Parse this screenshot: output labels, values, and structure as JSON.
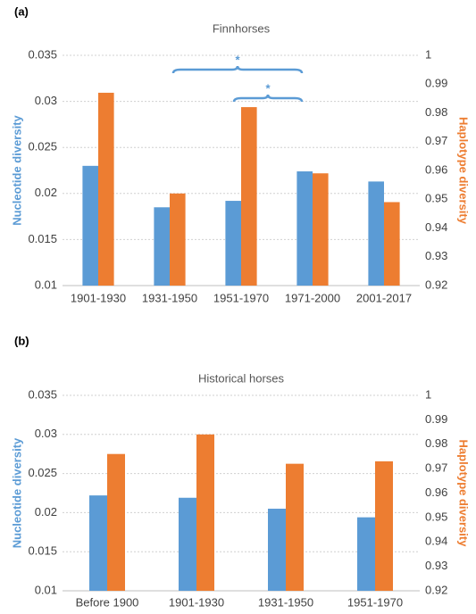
{
  "chart_data": [
    {
      "type": "bar",
      "panel_label": "(a)",
      "title": "Finnhorses",
      "categories": [
        "1901-1930",
        "1931-1950",
        "1951-1970",
        "1971-2000",
        "2001-2017"
      ],
      "series": [
        {
          "name": "Nucleotide diversity",
          "color": "#5b9bd5",
          "values": [
            0.023,
            0.0185,
            0.0192,
            0.0224,
            0.0213
          ]
        },
        {
          "name": "Haplotype diversity",
          "color": "#ed7d31",
          "axis": "y2",
          "values": [
            0.987,
            0.952,
            0.982,
            0.959,
            0.949
          ]
        }
      ],
      "ylabel": "Nucleotide diversity",
      "y2label": "Haplotype diversity",
      "ylim": [
        0.01,
        0.035
      ],
      "yticks": [
        0.01,
        0.015,
        0.02,
        0.025,
        0.03,
        0.035
      ],
      "y2lim": [
        0.92,
        1
      ],
      "y2ticks": [
        0.92,
        0.93,
        0.94,
        0.95,
        0.96,
        0.97,
        0.98,
        0.99,
        1
      ],
      "grid": true,
      "annotations": [
        "*",
        "*"
      ]
    },
    {
      "type": "bar",
      "panel_label": "(b)",
      "title": "Historical horses",
      "categories": [
        "Before 1900",
        "1901-1930",
        "1931-1950",
        "1951-1970"
      ],
      "series": [
        {
          "name": "Nucleotide diversity",
          "color": "#5b9bd5",
          "values": [
            0.0222,
            0.0219,
            0.0205,
            0.0194
          ]
        },
        {
          "name": "Haplotype diversity",
          "color": "#ed7d31",
          "axis": "y2",
          "values": [
            0.976,
            0.984,
            0.972,
            0.973
          ]
        }
      ],
      "ylabel": "Nucleotide diversity",
      "y2label": "Haplotype diversity",
      "ylim": [
        0.01,
        0.035
      ],
      "yticks": [
        0.01,
        0.015,
        0.02,
        0.025,
        0.03,
        0.035
      ],
      "y2lim": [
        0.92,
        1
      ],
      "y2ticks": [
        0.92,
        0.93,
        0.94,
        0.95,
        0.96,
        0.97,
        0.98,
        0.99,
        1
      ],
      "grid": true
    }
  ]
}
